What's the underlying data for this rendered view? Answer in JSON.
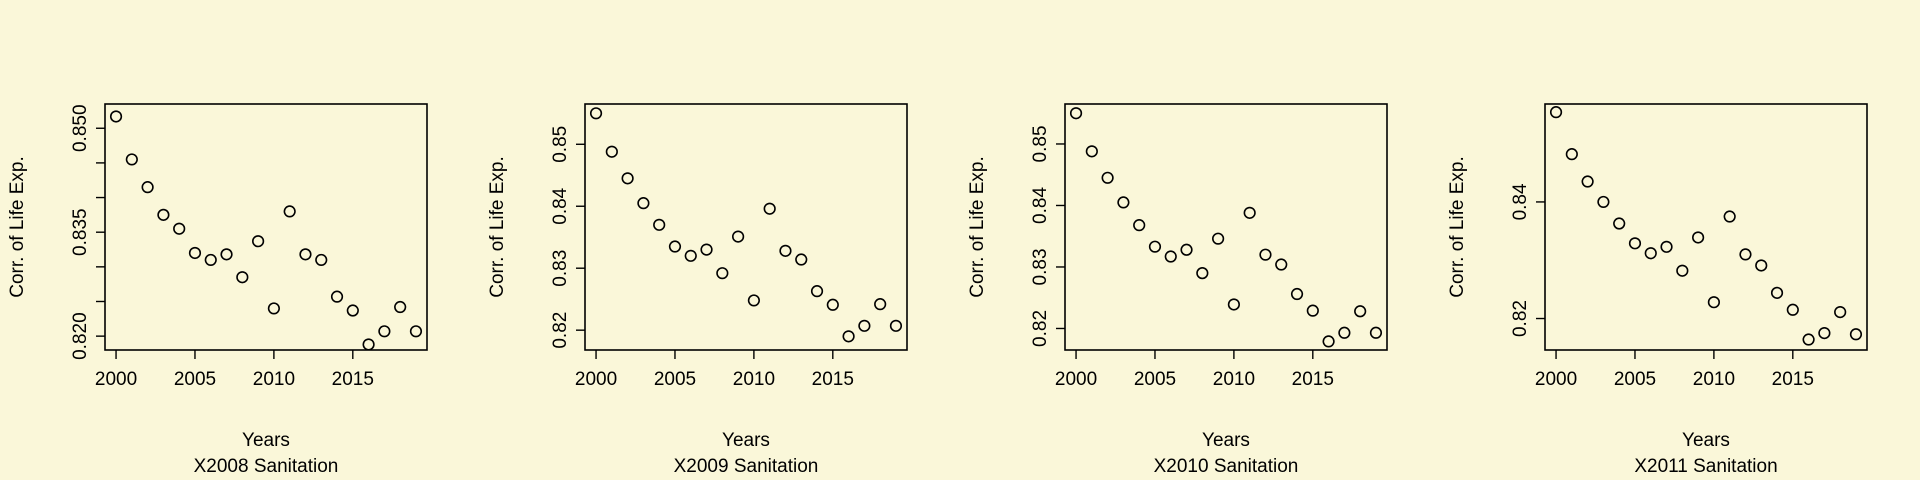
{
  "chart_data": [
    {
      "type": "scatter",
      "title": "",
      "xlabel": "Years",
      "subtitle": "X2008 Sanitation",
      "ylabel": "Corr. of Life Exp.",
      "xlim": [
        1999.3,
        2019.7
      ],
      "ylim": [
        0.818,
        0.8535
      ],
      "xticks": [
        2000,
        2005,
        2010,
        2015
      ],
      "yticks": [
        0.82,
        0.825,
        0.83,
        0.835,
        0.84,
        0.845,
        0.85
      ],
      "ytick_labels": [
        "0.820",
        "",
        "",
        "0.835",
        "",
        "",
        "0.850"
      ],
      "x": [
        2000,
        2001,
        2002,
        2003,
        2004,
        2005,
        2006,
        2007,
        2008,
        2009,
        2010,
        2011,
        2012,
        2013,
        2014,
        2015,
        2016,
        2017,
        2018,
        2019
      ],
      "y": [
        0.8517,
        0.8455,
        0.8415,
        0.8375,
        0.8355,
        0.832,
        0.831,
        0.8318,
        0.8285,
        0.8337,
        0.824,
        0.838,
        0.8318,
        0.831,
        0.8257,
        0.8237,
        0.8188,
        0.8207,
        0.8242,
        0.8207
      ]
    },
    {
      "type": "scatter",
      "title": "",
      "xlabel": "Years",
      "subtitle": "X2009 Sanitation",
      "ylabel": "Corr. of Life Exp.",
      "xlim": [
        1999.3,
        2019.7
      ],
      "ylim": [
        0.8168,
        0.8565
      ],
      "xticks": [
        2000,
        2005,
        2010,
        2015
      ],
      "yticks": [
        0.82,
        0.83,
        0.84,
        0.85
      ],
      "ytick_labels": [
        "0.82",
        "0.83",
        "0.84",
        "0.85"
      ],
      "x": [
        2000,
        2001,
        2002,
        2003,
        2004,
        2005,
        2006,
        2007,
        2008,
        2009,
        2010,
        2011,
        2012,
        2013,
        2014,
        2015,
        2016,
        2017,
        2018,
        2019
      ],
      "y": [
        0.855,
        0.8488,
        0.8445,
        0.8405,
        0.837,
        0.8335,
        0.832,
        0.833,
        0.8292,
        0.8351,
        0.8248,
        0.8396,
        0.8328,
        0.8314,
        0.8263,
        0.8241,
        0.819,
        0.8207,
        0.8242,
        0.8207
      ]
    },
    {
      "type": "scatter",
      "title": "",
      "xlabel": "Years",
      "subtitle": "X2010 Sanitation",
      "ylabel": "Corr. of Life Exp.",
      "xlim": [
        1999.3,
        2019.7
      ],
      "ylim": [
        0.8165,
        0.8565
      ],
      "xticks": [
        2000,
        2005,
        2010,
        2015
      ],
      "yticks": [
        0.82,
        0.83,
        0.84,
        0.85
      ],
      "ytick_labels": [
        "0.82",
        "0.83",
        "0.84",
        "0.85"
      ],
      "x": [
        2000,
        2001,
        2002,
        2003,
        2004,
        2005,
        2006,
        2007,
        2008,
        2009,
        2010,
        2011,
        2012,
        2013,
        2014,
        2015,
        2016,
        2017,
        2018,
        2019
      ],
      "y": [
        0.855,
        0.8488,
        0.8445,
        0.8405,
        0.8368,
        0.8333,
        0.8317,
        0.8328,
        0.829,
        0.8346,
        0.8239,
        0.8388,
        0.832,
        0.8304,
        0.8256,
        0.8229,
        0.8179,
        0.8193,
        0.8228,
        0.8193
      ]
    },
    {
      "type": "scatter",
      "title": "",
      "xlabel": "Years",
      "subtitle": "X2011 Sanitation",
      "ylabel": "Corr. of Life Exp.",
      "xlim": [
        1999.3,
        2019.7
      ],
      "ylim": [
        0.8146,
        0.8568
      ],
      "xticks": [
        2000,
        2005,
        2010,
        2015
      ],
      "yticks": [
        0.82,
        0.84
      ],
      "ytick_labels": [
        "0.82",
        "0.84"
      ],
      "x": [
        2000,
        2001,
        2002,
        2003,
        2004,
        2005,
        2006,
        2007,
        2008,
        2009,
        2010,
        2011,
        2012,
        2013,
        2014,
        2015,
        2016,
        2017,
        2018,
        2019
      ],
      "y": [
        0.8554,
        0.8482,
        0.8435,
        0.84,
        0.8363,
        0.8329,
        0.8312,
        0.8323,
        0.8282,
        0.8339,
        0.8228,
        0.8375,
        0.831,
        0.8291,
        0.8244,
        0.8215,
        0.8164,
        0.8175,
        0.8211,
        0.8173
      ]
    }
  ]
}
